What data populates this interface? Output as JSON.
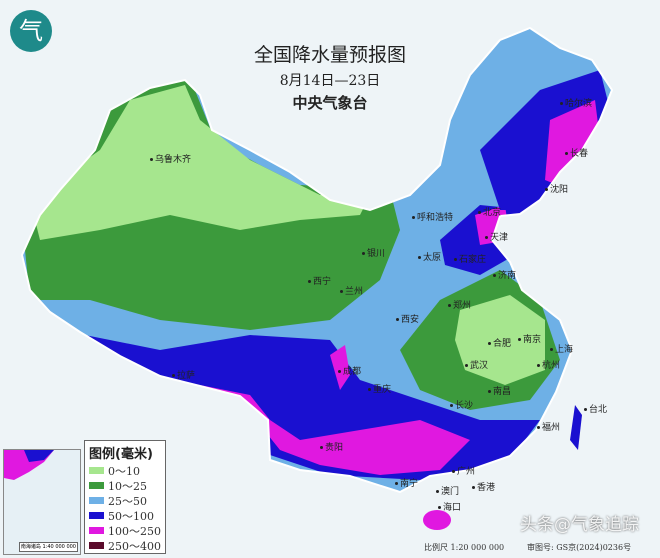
{
  "header": {
    "logo_glyph": "气",
    "title": "全国降水量预报图",
    "date_range": "8月14日—23日",
    "issuer": "中央气象台"
  },
  "legend": {
    "title": "图例(毫米)",
    "items": [
      {
        "label": "0～10",
        "color": "#a6e68e"
      },
      {
        "label": "10～25",
        "color": "#3c9a3c"
      },
      {
        "label": "25～50",
        "color": "#6eb0e6"
      },
      {
        "label": "50～100",
        "color": "#1a10d0"
      },
      {
        "label": "100～250",
        "color": "#e018e0"
      },
      {
        "label": "250～400",
        "color": "#5a0a2a"
      }
    ]
  },
  "cities": [
    {
      "name": "乌鲁木齐"
    },
    {
      "name": "呼和浩特"
    },
    {
      "name": "北京"
    },
    {
      "name": "天津"
    },
    {
      "name": "银川"
    },
    {
      "name": "太原"
    },
    {
      "name": "石家庄"
    },
    {
      "name": "济南"
    },
    {
      "name": "西宁"
    },
    {
      "name": "兰州"
    },
    {
      "name": "郑州"
    },
    {
      "name": "西安"
    },
    {
      "name": "合肥"
    },
    {
      "name": "南京"
    },
    {
      "name": "上海"
    },
    {
      "name": "武汉"
    },
    {
      "name": "杭州"
    },
    {
      "name": "拉萨"
    },
    {
      "name": "成都"
    },
    {
      "name": "重庆"
    },
    {
      "name": "长沙"
    },
    {
      "name": "南昌"
    },
    {
      "name": "福州"
    },
    {
      "name": "贵阳"
    },
    {
      "name": "南宁"
    },
    {
      "name": "广州"
    },
    {
      "name": "澳门"
    },
    {
      "name": "香港"
    },
    {
      "name": "海口"
    },
    {
      "name": "哈尔滨"
    },
    {
      "name": "长春"
    },
    {
      "name": "沈阳"
    },
    {
      "name": "台北"
    }
  ],
  "inset": {
    "scale": "南海诸岛 1:40 000 000"
  },
  "footer": {
    "scale": "比例尺 1:20 000 000",
    "approval": "审图号: GS京(2024)0236号",
    "watermark": "头条@气象追踪"
  },
  "colors": {
    "ocean": "#eef4f7",
    "border": "#ffffff"
  }
}
